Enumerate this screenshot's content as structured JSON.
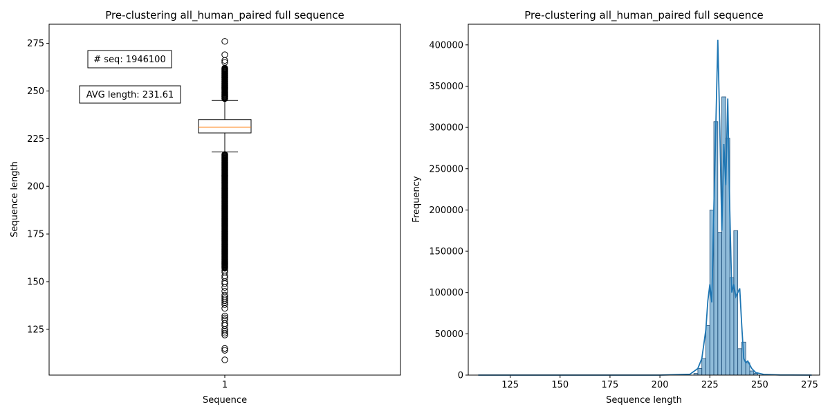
{
  "chart_data": [
    {
      "type": "box",
      "title": "Pre-clustering all_human_paired full sequence",
      "xlabel": "Sequence",
      "ylabel": "Sequence length",
      "categories": [
        "1"
      ],
      "ylim": [
        101,
        285
      ],
      "yticks": [
        125,
        150,
        175,
        200,
        225,
        250,
        275
      ],
      "box": {
        "whisker_low": 218,
        "q1": 228,
        "median": 231,
        "q3": 235,
        "whisker_high": 245,
        "color_box": "#000000",
        "color_median": "#ff7f0e"
      },
      "outliers_high": [
        246,
        247,
        248,
        249,
        250,
        251,
        252,
        253,
        254,
        255,
        256,
        257,
        258,
        259,
        260,
        261,
        262,
        265,
        266,
        269,
        276
      ],
      "outliers_low_dense_range": [
        157,
        217
      ],
      "outliers_low": [
        156,
        155,
        153,
        152,
        150,
        149,
        147,
        145,
        143,
        142,
        141,
        140,
        139,
        138,
        136,
        132,
        131,
        130,
        128,
        127,
        125,
        124,
        123,
        122,
        115,
        114,
        109
      ],
      "annotations": [
        {
          "text": "# seq: 1946100"
        },
        {
          "text": "AVG length: 231.61"
        }
      ],
      "grid": false
    },
    {
      "type": "histogram",
      "title": "Pre-clustering all_human_paired full sequence",
      "xlabel": "Sequence length",
      "ylabel": "Frequency",
      "xlim": [
        104,
        280
      ],
      "ylim": [
        0,
        425000
      ],
      "xticks": [
        125,
        150,
        175,
        200,
        225,
        250,
        275
      ],
      "yticks": [
        0,
        50000,
        100000,
        150000,
        200000,
        250000,
        300000,
        350000,
        400000
      ],
      "bar_color": "#1f77b4",
      "bins": [
        {
          "x0": 217,
          "x1": 219,
          "value": 2000
        },
        {
          "x0": 219,
          "x1": 221,
          "value": 8000
        },
        {
          "x0": 221,
          "x1": 223,
          "value": 20000
        },
        {
          "x0": 223,
          "x1": 225,
          "value": 60000
        },
        {
          "x0": 225,
          "x1": 227,
          "value": 200000
        },
        {
          "x0": 227,
          "x1": 229,
          "value": 307000
        },
        {
          "x0": 229,
          "x1": 231,
          "value": 173000
        },
        {
          "x0": 231,
          "x1": 233,
          "value": 337000
        },
        {
          "x0": 233,
          "x1": 235,
          "value": 287000
        },
        {
          "x0": 235,
          "x1": 237,
          "value": 118000
        },
        {
          "x0": 237,
          "x1": 239,
          "value": 175000
        },
        {
          "x0": 239,
          "x1": 241,
          "value": 32000
        },
        {
          "x0": 241,
          "x1": 243,
          "value": 40000
        },
        {
          "x0": 243,
          "x1": 245,
          "value": 15000
        },
        {
          "x0": 245,
          "x1": 247,
          "value": 5000
        },
        {
          "x0": 247,
          "x1": 249,
          "value": 2000
        }
      ],
      "kde": [
        {
          "x": 109,
          "y": 0
        },
        {
          "x": 150,
          "y": 0
        },
        {
          "x": 200,
          "y": 0
        },
        {
          "x": 215,
          "y": 1000
        },
        {
          "x": 219,
          "y": 8000
        },
        {
          "x": 221,
          "y": 20000
        },
        {
          "x": 223,
          "y": 55000
        },
        {
          "x": 224,
          "y": 90000
        },
        {
          "x": 225,
          "y": 110000
        },
        {
          "x": 226,
          "y": 88000
        },
        {
          "x": 227,
          "y": 200000
        },
        {
          "x": 228,
          "y": 300000
        },
        {
          "x": 229,
          "y": 406000
        },
        {
          "x": 230,
          "y": 300000
        },
        {
          "x": 231,
          "y": 175000
        },
        {
          "x": 232,
          "y": 280000
        },
        {
          "x": 233,
          "y": 230000
        },
        {
          "x": 234,
          "y": 335000
        },
        {
          "x": 235,
          "y": 200000
        },
        {
          "x": 236,
          "y": 100000
        },
        {
          "x": 237,
          "y": 110000
        },
        {
          "x": 238,
          "y": 95000
        },
        {
          "x": 239,
          "y": 100000
        },
        {
          "x": 240,
          "y": 105000
        },
        {
          "x": 241,
          "y": 60000
        },
        {
          "x": 242,
          "y": 20000
        },
        {
          "x": 243,
          "y": 15000
        },
        {
          "x": 244,
          "y": 17000
        },
        {
          "x": 246,
          "y": 8000
        },
        {
          "x": 248,
          "y": 3000
        },
        {
          "x": 252,
          "y": 800
        },
        {
          "x": 260,
          "y": 200
        },
        {
          "x": 276,
          "y": 0
        }
      ],
      "grid": false
    }
  ]
}
